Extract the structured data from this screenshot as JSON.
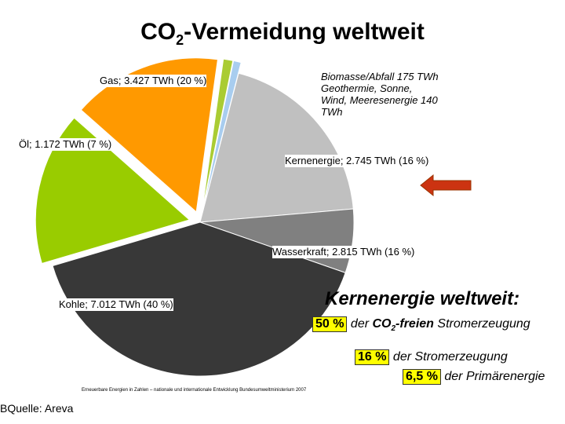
{
  "title": {
    "main": "CO",
    "sub": "2",
    "rest": "-Vermeidung weltweit"
  },
  "chart_data": {
    "type": "pie",
    "slices": [
      {
        "name": "Biomasse/Abfall",
        "value": 175,
        "percent": 1,
        "color": "#aacc33"
      },
      {
        "name": "Geothermie, Sonne, Wind, Meeresenergie",
        "value": 140,
        "percent": 1,
        "color": "#a8cdef"
      },
      {
        "name": "Gas",
        "value": 3427,
        "percent": 20,
        "color": "#c0c0c0"
      },
      {
        "name": "Öl",
        "value": 1172,
        "percent": 7,
        "color": "#808080"
      },
      {
        "name": "Kohle",
        "value": 7012,
        "percent": 40,
        "color": "#383838"
      },
      {
        "name": "Wasserkraft",
        "value": 2815,
        "percent": 16,
        "color": "#99cc00"
      },
      {
        "name": "Kernenergie",
        "value": 2745,
        "percent": 16,
        "color": "#ff9900"
      }
    ],
    "labels": {
      "gas": "Gas; 3.427 TWh (20 %)",
      "oel": "Öl; 1.172 TWh (7 %)",
      "kohle": "Kohle; 7.012 TWh (40 %)",
      "wasser": "Wasserkraft; 2.815 TWh (16 %)",
      "kern": "Kernenergie; 2.745 TWh (16 %)",
      "bio_line1": "Biomasse/Abfall 175 TWh",
      "bio_line2": "Geothermie, Sonne,",
      "bio_line3": "Wind, Meeresenergie 140",
      "bio_line4": "TWh"
    }
  },
  "callout": {
    "heading": "Kernenergie weltweit:",
    "line1_box": "50 %",
    "line1_a": " der ",
    "line1_co": "CO",
    "line1_sub": "2",
    "line1_b": "-freien",
    "line1_c": " Stromerzeugung",
    "line2_box": "16 %",
    "line2_text": " der Stromerzeugung",
    "line3_box": "6,5 %",
    "line3_text": " der Primärenergie"
  },
  "source": "Erneuerbare Energien in Zahlen – nationale und internationale Entwicklung Bundesumweltministerium 2007",
  "quelle": "BQuelle: Areva",
  "colors": {
    "arrow": "#cc3311",
    "highlight": "#ffff00"
  }
}
